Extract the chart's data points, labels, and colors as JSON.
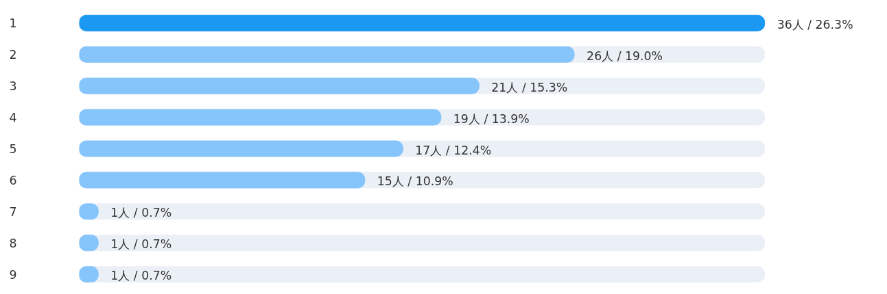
{
  "chart_data": {
    "type": "bar",
    "orientation": "horizontal",
    "categories": [
      "1",
      "2",
      "3",
      "4",
      "5",
      "6",
      "7",
      "8",
      "9"
    ],
    "values": [
      36,
      26,
      21,
      19,
      17,
      15,
      1,
      1,
      1
    ],
    "colors": [
      "#1a98f2",
      "#85c5fc",
      "#85c5fc",
      "#85c5fc",
      "#85c5fc",
      "#85c5fc",
      "#85c5fc",
      "#85c5fc",
      "#85c5fc"
    ],
    "value_labels": [
      "36人 / 26.3%",
      "26人 / 19.0%",
      "21人 / 15.3%",
      "19人 / 13.9%",
      "17人 / 12.4%",
      "15人 / 10.9%",
      "1人 / 0.7%",
      "1人 / 0.7%",
      "1人 / 0.7%"
    ],
    "bands": [
      {
        "axis": "y",
        "from": "2",
        "to": "2",
        "color": "#ebf0f6"
      },
      {
        "axis": "y",
        "from": "3",
        "to": "3",
        "color": "#ebf0f6"
      },
      {
        "axis": "y",
        "from": "4",
        "to": "4",
        "color": "#ebf0f6"
      },
      {
        "axis": "y",
        "from": "5",
        "to": "5",
        "color": "#ebf0f6"
      },
      {
        "axis": "y",
        "from": "6",
        "to": "6",
        "color": "#ebf0f6"
      },
      {
        "axis": "y",
        "from": "7",
        "to": "7",
        "color": "#ebf0f6"
      },
      {
        "axis": "y",
        "from": "8",
        "to": "8",
        "color": "#ebf0f6"
      },
      {
        "axis": "y",
        "from": "9",
        "to": "9",
        "color": "#ebf0f6"
      }
    ],
    "grid": false
  }
}
